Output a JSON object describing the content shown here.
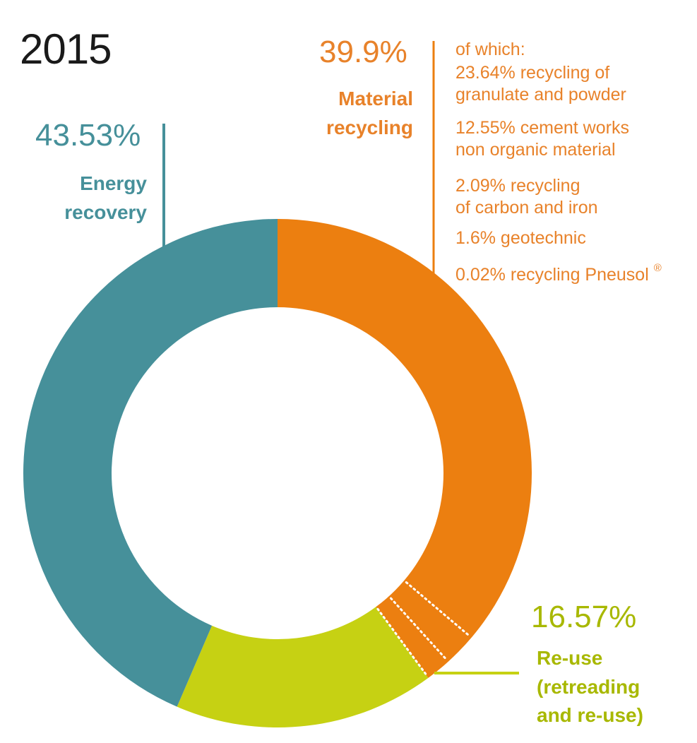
{
  "title": "2015",
  "colors": {
    "energy": "#46909a",
    "material": "#ec7f10",
    "reuse": "#c6d113",
    "material_text": "#e8822a",
    "reuse_text": "#a8b800",
    "energy_text": "#46909a"
  },
  "chart_data": {
    "type": "pie",
    "title": "2015",
    "series": [
      {
        "name": "Material recycling",
        "value": 39.9,
        "label": "39.9%"
      },
      {
        "name": "Re-use (retreading and re-use)",
        "value": 16.57,
        "label": "16.57%"
      },
      {
        "name": "Energy recovery",
        "value": 43.53,
        "label": "43.53%"
      }
    ],
    "material_breakdown": [
      {
        "value": 23.64,
        "text": "23.64% recycling of granulate and powder"
      },
      {
        "value": 12.55,
        "text": "12.55% cement works non organic material"
      },
      {
        "value": 2.09,
        "text": "2.09% recycling of carbon and iron"
      },
      {
        "value": 1.6,
        "text": "1.6% geotechnic"
      },
      {
        "value": 0.02,
        "text": "0.02% recycling Pneusol ®"
      }
    ]
  },
  "labels": {
    "energy": {
      "pct": "43.53%",
      "name_line1": "Energy",
      "name_line2": "recovery"
    },
    "material": {
      "pct": "39.9%",
      "name_line1": "Material",
      "name_line2": "recycling"
    },
    "reuse": {
      "pct": "16.57%",
      "name_line1": "Re-use",
      "name_line2": "(retreading",
      "name_line3": "and re-use)"
    },
    "breakdown": {
      "intro": "of which:",
      "item1_line1": "23.64% recycling of",
      "item1_line2": "granulate and powder",
      "item2_line1": "12.55% cement works",
      "item2_line2": "non organic material",
      "item3_line1": "2.09% recycling",
      "item3_line2": "of carbon and iron",
      "item4": "1.6% geotechnic",
      "item5": "0.02% recycling Pneusol",
      "item5_mark": "®"
    }
  }
}
